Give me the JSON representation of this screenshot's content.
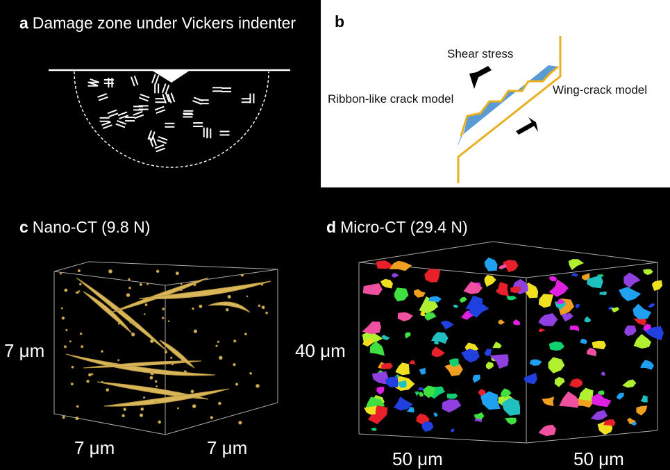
{
  "panels": {
    "a": {
      "letter": "a",
      "title": "Damage zone under Vickers indenter"
    },
    "b": {
      "letter": "b",
      "shear": "Shear stress",
      "ribbon": "Ribbon-like crack model",
      "wing": "Wing-crack model"
    },
    "c": {
      "letter": "c",
      "title": "Nano-CT (9.8 N)",
      "dim_y": "7 μm",
      "dim_x1": "7 μm",
      "dim_x2": "7 μm"
    },
    "d": {
      "letter": "d",
      "title": "Micro-CT (29.4 N)",
      "dim_y": "40 μm",
      "dim_x1": "50 μm",
      "dim_x2": "50 μm"
    }
  },
  "colors": {
    "background": "#000000",
    "crack_gold": "#d9b65a",
    "wing_crack": "#e8b020",
    "ribbon_blue": "#5b9bd5"
  }
}
